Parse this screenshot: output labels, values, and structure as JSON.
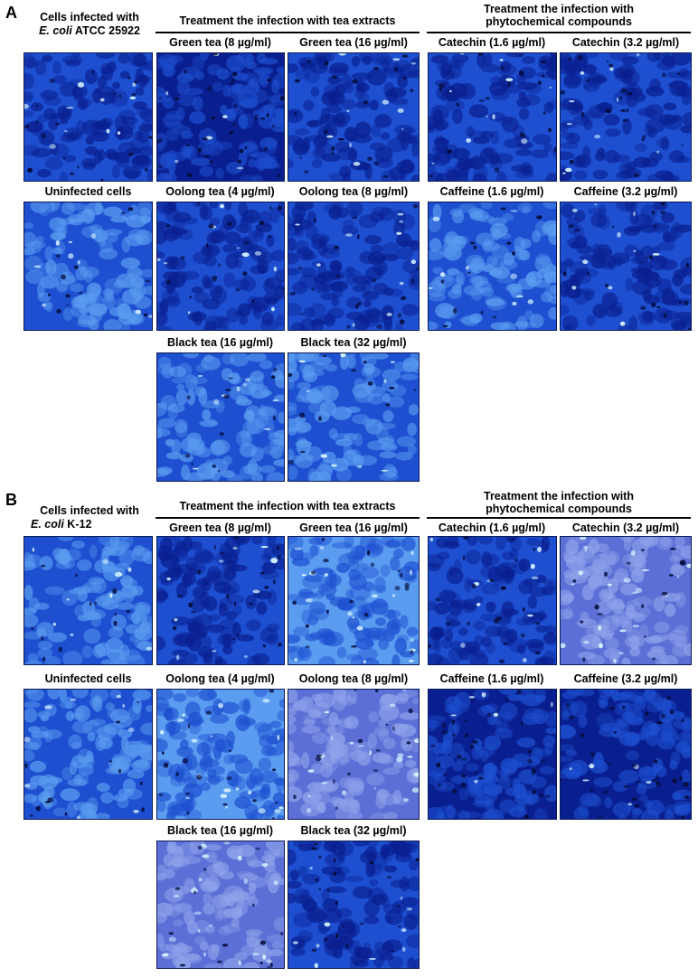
{
  "panels": [
    {
      "letter": "A",
      "control_label_line1": "Cells infected with",
      "control_label_italic": "E. coli",
      "control_label_strain": " ATCC 25922",
      "uninfected_label": "Uninfected cells",
      "tea_header": "Treatment the infection with tea extracts",
      "phyto_header_line1": "Treatment the infection with",
      "phyto_header_line2": "phytochemical compounds",
      "tea_labels": {
        "green_low": "Green tea (8 µg/ml)",
        "green_high": "Green tea (16 µg/ml)",
        "oolong_low": "Oolong tea (4 µg/ml)",
        "oolong_high": "Oolong tea (8 µg/ml)",
        "black_low": "Black tea (16 µg/ml)",
        "black_high": "Black tea (32 µg/ml)"
      },
      "phyto_labels": {
        "catechin_low": "Catechin (1.6 µg/ml)",
        "catechin_high": "Catechin (3.2 µg/ml)",
        "caffeine_low": "Caffeine (1.6 µg/ml)",
        "caffeine_high": "Caffeine (3.2 µg/ml)"
      }
    },
    {
      "letter": "B",
      "control_label_line1": "Cells infected with",
      "control_label_italic": "E. coli",
      "control_label_strain": " K-12",
      "uninfected_label": "Uninfected cells",
      "tea_header": "Treatment the infection with tea extracts",
      "phyto_header_line1": "Treatment the infection with",
      "phyto_header_line2": "phytochemical compounds",
      "tea_labels": {
        "green_low": "Green tea (8 µg/ml)",
        "green_high": "Green tea (16 µg/ml)",
        "oolong_low": "Oolong tea (4 µg/ml)",
        "oolong_high": "Oolong tea (8 µg/ml)",
        "black_low": "Black tea (16 µg/ml)",
        "black_high": "Black tea (32 µg/ml)"
      },
      "phyto_labels": {
        "catechin_low": "Catechin (1.6 µg/ml)",
        "catechin_high": "Catechin (3.2 µg/ml)",
        "caffeine_low": "Caffeine (1.6 µg/ml)",
        "caffeine_high": "Caffeine (3.2 µg/ml)"
      }
    }
  ],
  "colors": {
    "stain_dark": "#0a1f8f",
    "stain_mid": "#1d4fd0",
    "stain_light": "#5a9cf0",
    "highlight": "#d8f4ff",
    "nuclei": "#050b3a"
  }
}
